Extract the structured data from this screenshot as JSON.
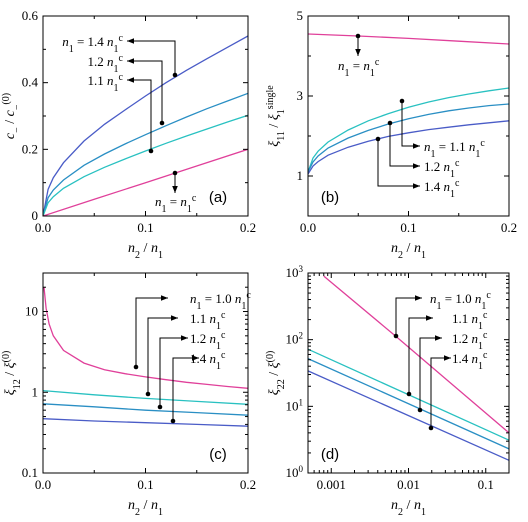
{
  "colors": {
    "magenta": "#e0409a",
    "cyan": "#29c1c1",
    "teal": "#2a8fc4",
    "blue": "#4a5cc7"
  },
  "chart_data": [
    {
      "panel": "(a)",
      "type": "line",
      "xlabel": "n2 / n1",
      "ylabel": "c− / c−(0)",
      "xlim": [
        0,
        0.2
      ],
      "ylim": [
        0,
        0.6
      ],
      "xticks": [
        "0.0",
        "0.1",
        "0.2"
      ],
      "yticks": [
        "0",
        "0.2",
        "0.4",
        "0.6"
      ],
      "series": [
        {
          "name": "n1 = 1.4 n1c",
          "color_key": "blue",
          "x": [
            0,
            0.005,
            0.01,
            0.02,
            0.04,
            0.06,
            0.08,
            0.1,
            0.12,
            0.14,
            0.16,
            0.18,
            0.2
          ],
          "y": [
            0,
            0.08,
            0.115,
            0.16,
            0.225,
            0.275,
            0.318,
            0.36,
            0.4,
            0.437,
            0.472,
            0.506,
            0.54
          ]
        },
        {
          "name": "n1 = 1.2 n1c",
          "color_key": "teal",
          "x": [
            0,
            0.005,
            0.01,
            0.02,
            0.04,
            0.06,
            0.08,
            0.1,
            0.12,
            0.14,
            0.16,
            0.18,
            0.2
          ],
          "y": [
            0,
            0.055,
            0.078,
            0.108,
            0.152,
            0.186,
            0.216,
            0.244,
            0.271,
            0.297,
            0.322,
            0.345,
            0.368
          ]
        },
        {
          "name": "n1 = 1.1 n1c",
          "color_key": "cyan",
          "x": [
            0,
            0.005,
            0.01,
            0.02,
            0.04,
            0.06,
            0.08,
            0.1,
            0.12,
            0.14,
            0.16,
            0.18,
            0.2
          ],
          "y": [
            0,
            0.04,
            0.058,
            0.083,
            0.118,
            0.146,
            0.171,
            0.195,
            0.218,
            0.24,
            0.261,
            0.282,
            0.302
          ]
        },
        {
          "name": "n1 = n1c",
          "color_key": "magenta",
          "x": [
            0,
            0.05,
            0.1,
            0.15,
            0.2
          ],
          "y": [
            0,
            0.05,
            0.1,
            0.15,
            0.2
          ]
        }
      ],
      "annotations": [
        "n1 = 1.4 n1c",
        "1.2 n1c",
        "1.1 n1c",
        "n1 = n1c"
      ]
    },
    {
      "panel": "(b)",
      "type": "line",
      "xlabel": "n2 / n1",
      "ylabel": "ξ11 / ξ1single",
      "xlim": [
        0,
        0.2
      ],
      "ylim": [
        0,
        5
      ],
      "xticks": [
        "0.0",
        "0.1",
        "0.2"
      ],
      "yticks": [
        "1",
        "3",
        "5"
      ],
      "series": [
        {
          "name": "n1 = n1c",
          "color_key": "magenta",
          "x": [
            0,
            0.05,
            0.1,
            0.15,
            0.2
          ],
          "y": [
            4.55,
            4.5,
            4.44,
            4.37,
            4.3
          ]
        },
        {
          "name": "n1 = 1.1 n1c",
          "color_key": "cyan",
          "x": [
            0,
            0.005,
            0.01,
            0.02,
            0.04,
            0.06,
            0.08,
            0.1,
            0.12,
            0.14,
            0.16,
            0.18,
            0.2
          ],
          "y": [
            1.1,
            1.45,
            1.62,
            1.85,
            2.15,
            2.38,
            2.56,
            2.72,
            2.85,
            2.96,
            3.05,
            3.13,
            3.2
          ]
        },
        {
          "name": "n1 = 1.2 n1c",
          "color_key": "teal",
          "x": [
            0,
            0.005,
            0.01,
            0.02,
            0.04,
            0.06,
            0.08,
            0.1,
            0.12,
            0.14,
            0.16,
            0.18,
            0.2
          ],
          "y": [
            1.1,
            1.35,
            1.5,
            1.7,
            1.95,
            2.14,
            2.3,
            2.43,
            2.54,
            2.63,
            2.7,
            2.76,
            2.8
          ]
        },
        {
          "name": "n1 = 1.4 n1c",
          "color_key": "blue",
          "x": [
            0,
            0.005,
            0.01,
            0.02,
            0.04,
            0.06,
            0.08,
            0.1,
            0.12,
            0.14,
            0.16,
            0.18,
            0.2
          ],
          "y": [
            1.05,
            1.25,
            1.36,
            1.52,
            1.72,
            1.87,
            1.99,
            2.08,
            2.16,
            2.22,
            2.28,
            2.33,
            2.38
          ]
        }
      ],
      "annotations": [
        "n1 = n1c",
        "n1 = 1.1 n1c",
        "1.2 n1c",
        "1.4 n1c"
      ]
    },
    {
      "panel": "(c)",
      "type": "line",
      "xlabel": "n2 / n1",
      "ylabel": "ξ12 / ξ(0)",
      "xlim": [
        0,
        0.2
      ],
      "ylim": [
        0.1,
        30
      ],
      "yscale": "log",
      "xticks": [
        "0.0",
        "0.1",
        "0.2"
      ],
      "yticks": [
        "0.1",
        "1",
        "10"
      ],
      "series": [
        {
          "name": "n1 = 1.0 n1c",
          "color_key": "magenta",
          "x": [
            0.001,
            0.003,
            0.006,
            0.01,
            0.02,
            0.04,
            0.06,
            0.08,
            0.1,
            0.12,
            0.14,
            0.16,
            0.18,
            0.2
          ],
          "y": [
            20,
            11,
            7,
            5,
            3.3,
            2.3,
            1.9,
            1.7,
            1.55,
            1.43,
            1.33,
            1.25,
            1.18,
            1.12
          ]
        },
        {
          "name": "n1 = 1.1 n1c",
          "color_key": "cyan",
          "x": [
            0,
            0.05,
            0.1,
            0.15,
            0.2
          ],
          "y": [
            1.05,
            0.93,
            0.84,
            0.77,
            0.71
          ]
        },
        {
          "name": "n1 = 1.2 n1c",
          "color_key": "teal",
          "x": [
            0,
            0.05,
            0.1,
            0.15,
            0.2
          ],
          "y": [
            0.72,
            0.66,
            0.6,
            0.56,
            0.52
          ]
        },
        {
          "name": "n1 = 1.4 n1c",
          "color_key": "blue",
          "x": [
            0,
            0.05,
            0.1,
            0.15,
            0.2
          ],
          "y": [
            0.47,
            0.44,
            0.42,
            0.4,
            0.38
          ]
        }
      ],
      "annotations": [
        "n1 = 1.0 n1c",
        "1.1 n1c",
        "1.2 n1c",
        "1.4 n1c"
      ]
    },
    {
      "panel": "(d)",
      "type": "line",
      "xlabel": "n2 / n1",
      "ylabel": "ξ22 / ξ(0)",
      "xlim": [
        0.0005,
        0.2
      ],
      "ylim": [
        1,
        1000
      ],
      "xscale": "log",
      "yscale": "log",
      "xticks": [
        "0.001",
        "0.01",
        "0.1"
      ],
      "yticks": [
        "10^0",
        "10^1",
        "10^2",
        "10^3"
      ],
      "series": [
        {
          "name": "n1 = 1.0 n1c",
          "color_key": "magenta",
          "x": [
            0.0008,
            0.007,
            0.2
          ],
          "y": [
            900,
            110,
            4
          ]
        },
        {
          "name": "n1 = 1.1 n1c",
          "color_key": "cyan",
          "x": [
            0.0005,
            0.2
          ],
          "y": [
            72,
            3.1
          ]
        },
        {
          "name": "n1 = 1.2 n1c",
          "color_key": "teal",
          "x": [
            0.0005,
            0.2
          ],
          "y": [
            52,
            2.3
          ]
        },
        {
          "name": "n1 = 1.4 n1c",
          "color_key": "blue",
          "x": [
            0.0005,
            0.2
          ],
          "y": [
            34,
            1.55
          ]
        }
      ],
      "annotations": [
        "n1 = 1.0 n1c",
        "1.1 n1c",
        "1.2 n1c",
        "1.4 n1c"
      ]
    }
  ]
}
